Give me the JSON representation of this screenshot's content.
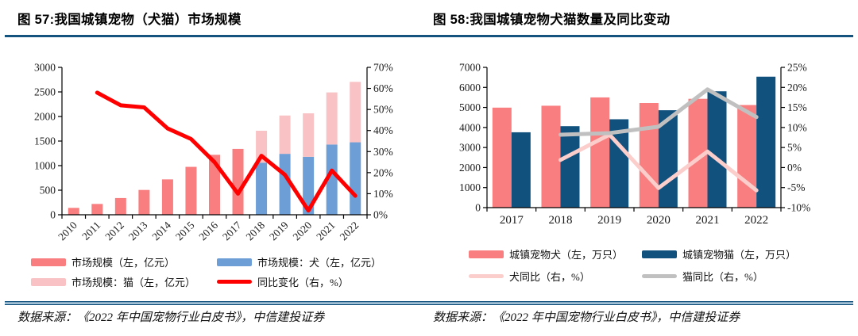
{
  "page": {
    "rule_color": "#14537e",
    "background": "#ffffff"
  },
  "figures": [
    {
      "title": "图 57:我国城镇宠物（犬猫）市场规模",
      "source": "数据来源：《2022 年中国宠物行业白皮书》，中信建投证券"
    },
    {
      "title": "图 58:我国城镇宠物犬猫数量及同比变动",
      "source": "数据来源：《2022 年中国宠物行业白皮书》，中信建投证券"
    }
  ],
  "chart_data": [
    {
      "type": "bar",
      "title": "图 57:我国城镇宠物（犬猫）市场规模",
      "categories": [
        "2010",
        "2011",
        "2012",
        "2013",
        "2014",
        "2015",
        "2016",
        "2017",
        "2018",
        "2019",
        "2020",
        "2021",
        "2022"
      ],
      "left_axis": {
        "min": 0,
        "max": 3000,
        "tick_step": 500,
        "labels": [
          "0",
          "500",
          "1000",
          "1500",
          "2000",
          "2500",
          "3000"
        ],
        "title": "亿元"
      },
      "right_axis": {
        "min": 0,
        "max": 70,
        "tick_step": 10,
        "labels": [
          "0%",
          "10%",
          "20%",
          "30%",
          "40%",
          "50%",
          "60%",
          "70%"
        ],
        "title": "%"
      },
      "grid": false,
      "legend_position": "bottom",
      "series": [
        {
          "name": "市场规模（左，亿元）",
          "kind": "bar",
          "axis": "left",
          "color": "#f87e80",
          "values": [
            140,
            220,
            340,
            505,
            720,
            975,
            1220,
            1340,
            null,
            null,
            null,
            null,
            null
          ]
        },
        {
          "name": "市场规模：犬（左，亿元）",
          "kind": "bar",
          "stack": "dogcat",
          "axis": "left",
          "color": "#6d9ed6",
          "values": [
            null,
            null,
            null,
            null,
            null,
            null,
            null,
            null,
            1060,
            1240,
            1180,
            1430,
            1475
          ]
        },
        {
          "name": "市场规模：猫（左，亿元）",
          "kind": "bar",
          "stack": "dogcat",
          "axis": "left",
          "color": "#f9c3c6",
          "values": [
            null,
            null,
            null,
            null,
            null,
            null,
            null,
            null,
            650,
            780,
            885,
            1060,
            1230
          ]
        },
        {
          "name": "同比变化（右，%）",
          "kind": "line",
          "axis": "right",
          "color": "#fe0000",
          "values": [
            null,
            58,
            52,
            51,
            41,
            36,
            25,
            10,
            28,
            19,
            2,
            21,
            9
          ]
        }
      ]
    },
    {
      "type": "bar",
      "title": "图 58:我国城镇宠物犬猫数量及同比变动",
      "categories": [
        "2017",
        "2018",
        "2019",
        "2020",
        "2021",
        "2022"
      ],
      "left_axis": {
        "min": 0,
        "max": 7000,
        "tick_step": 1000,
        "labels": [
          "0",
          "1000",
          "2000",
          "3000",
          "4000",
          "5000",
          "6000",
          "7000"
        ],
        "title": "万只"
      },
      "right_axis": {
        "min": -10,
        "max": 25,
        "tick_step": 5,
        "labels": [
          "-10%",
          "-5%",
          "0%",
          "5%",
          "10%",
          "15%",
          "20%",
          "25%"
        ],
        "title": "%"
      },
      "grid": false,
      "legend_position": "bottom",
      "series": [
        {
          "name": "城镇宠物犬（左，万只）",
          "kind": "bar",
          "axis": "left",
          "color": "#f87e80",
          "values": [
            4990,
            5085,
            5500,
            5220,
            5430,
            5120
          ]
        },
        {
          "name": "城镇宠物猫（左，万只）",
          "kind": "bar",
          "axis": "left",
          "color": "#10517e",
          "values": [
            3760,
            4065,
            4410,
            4860,
            5805,
            6535
          ]
        },
        {
          "name": "犬同比（右，%）",
          "kind": "line",
          "axis": "right",
          "color": "#fbcdcb",
          "values": [
            null,
            1.9,
            8.2,
            -5.1,
            4.0,
            -5.7
          ]
        },
        {
          "name": "猫同比（右，%）",
          "kind": "line",
          "axis": "right",
          "color": "#c1c0c0",
          "values": [
            null,
            8.2,
            8.6,
            10.2,
            19.5,
            12.6
          ]
        }
      ]
    }
  ]
}
